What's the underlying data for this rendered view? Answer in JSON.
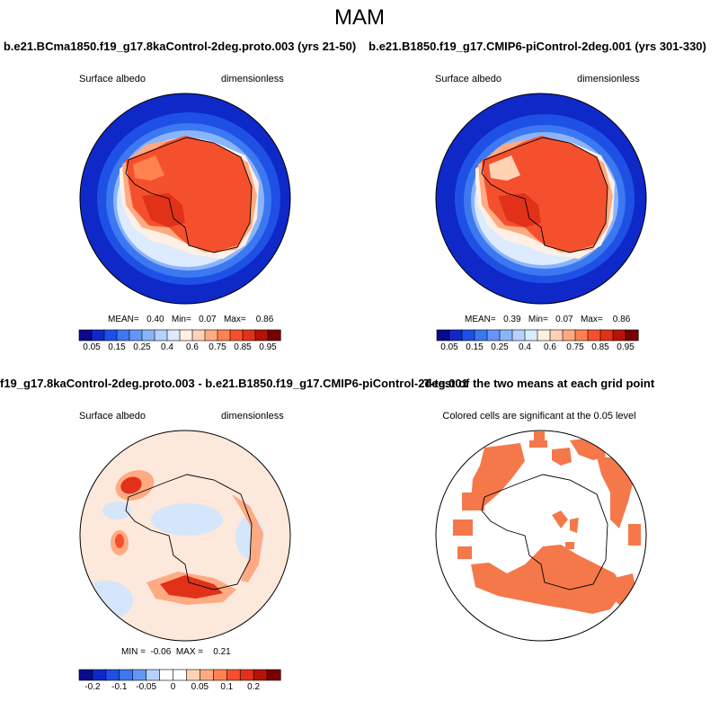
{
  "suptitle": "MAM",
  "panels": {
    "top_left": {
      "title": "b.e21.BCma1850.f19_g17.8kaControl-2deg.proto.003 (yrs 21-50)",
      "left_label": "Surface albedo",
      "right_label": "dimensionless",
      "stats": "MEAN=   0.40   Min=   0.07   Max=    0.86"
    },
    "top_right": {
      "title": "b.e21.B1850.f19_g17.CMIP6-piControl-2deg.001 (yrs 301-330)",
      "left_label": "Surface albedo",
      "right_label": "dimensionless",
      "stats": "MEAN=   0.39   Min=   0.07   Max=    0.86"
    },
    "bottom_left": {
      "title": "f19_g17.8kaControl-2deg.proto.003 - b.e21.B1850.f19_g17.CMIP6-piControl-2deg.001",
      "left_label": "Surface albedo",
      "right_label": "dimensionless",
      "stats": "MIN =  -0.06  MAX =    0.21"
    },
    "bottom_right": {
      "title": "T-test of the two means at each grid point",
      "subtitle": "Colored cells are significant at the 0.05 level"
    }
  },
  "colorbars": {
    "albedo": {
      "ticks": [
        "0.05",
        "0.15",
        "0.25",
        "0.4",
        "0.6",
        "0.75",
        "0.85",
        "0.95"
      ],
      "colors": [
        "#0a0a8c",
        "#0f28c8",
        "#1e50e6",
        "#3c78f0",
        "#6496f5",
        "#8cb4fa",
        "#b4d2fc",
        "#dcebfe",
        "#fff0e6",
        "#ffd2b4",
        "#ffaa82",
        "#ff8250",
        "#f5502d",
        "#e13219",
        "#b41408",
        "#780000"
      ]
    },
    "diff": {
      "ticks": [
        "-0.2",
        "-0.1",
        "-0.05",
        "0",
        "0.05",
        "0.1",
        "0.2"
      ],
      "colors": [
        "#0a0a8c",
        "#0f28c8",
        "#1e50e6",
        "#3c78f0",
        "#6496f5",
        "#b4d2fc",
        "#ffffff",
        "#ffffff",
        "#ffd2b4",
        "#ffaa82",
        "#ff8250",
        "#f5502d",
        "#e13219",
        "#b41408",
        "#780000"
      ]
    }
  },
  "map_colors": {
    "ocean_dark": "#0f28c8",
    "ocean_mid": "#3c78f0",
    "ice_light": "#b4d2fc",
    "ice_pale": "#dcebfe",
    "land_orange": "#f5502d",
    "land_dark": "#e13219",
    "diff_bg": "#fde8dc",
    "diff_blue": "#d6e6fa",
    "diff_peak": "#e13219",
    "sig": "#f5784a"
  }
}
